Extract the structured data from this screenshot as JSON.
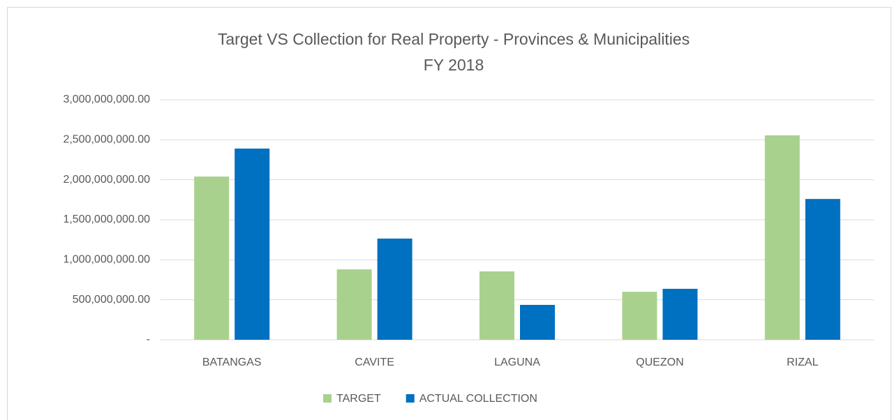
{
  "chart_data": {
    "type": "bar",
    "title": "Target VS Collection for Real Property - Provinces & Municipalities",
    "subtitle": "FY 2018",
    "categories": [
      "BATANGAS",
      "CAVITE",
      "LAGUNA",
      "QUEZON",
      "RIZAL"
    ],
    "series": [
      {
        "name": "TARGET",
        "color": "#a9d18e",
        "values": [
          2040000000,
          880000000,
          855000000,
          600000000,
          2555000000
        ]
      },
      {
        "name": "ACTUAL COLLECTION",
        "color": "#0070c0",
        "values": [
          2390000000,
          1265000000,
          436000000,
          637000000,
          1760000000
        ]
      }
    ],
    "ylim": [
      0,
      3000000000
    ],
    "yticks": [
      {
        "value": 0,
        "label": "-"
      },
      {
        "value": 500000000,
        "label": "500,000,000.00"
      },
      {
        "value": 1000000000,
        "label": "1,000,000,000.00"
      },
      {
        "value": 1500000000,
        "label": "1,500,000,000.00"
      },
      {
        "value": 2000000000,
        "label": "2,000,000,000.00"
      },
      {
        "value": 2500000000,
        "label": "2,500,000,000.00"
      },
      {
        "value": 3000000000,
        "label": "3,000,000,000.00"
      }
    ],
    "grid": true,
    "legend": "bottom"
  }
}
